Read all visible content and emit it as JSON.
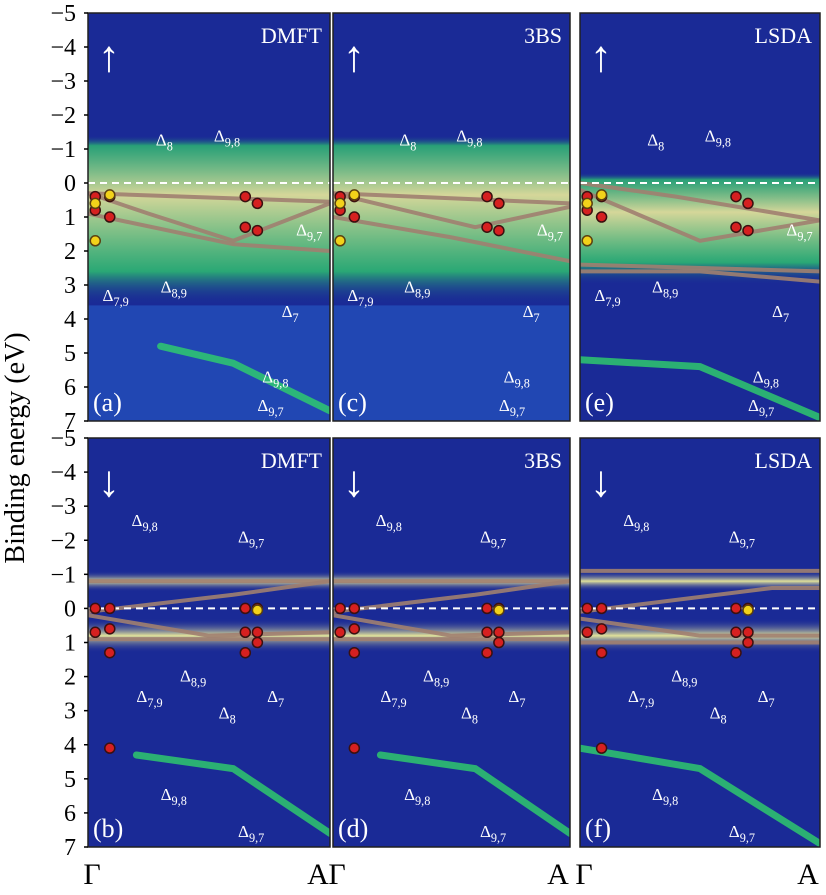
{
  "figure": {
    "ylabel": "Binding energy (eV)",
    "ytick_labels": [
      "−5",
      "−4",
      "−3",
      "−2",
      "−1",
      "0",
      "1",
      "2",
      "3",
      "4",
      "5",
      "6",
      "7"
    ],
    "k_labels": {
      "left": "Γ",
      "right": "A"
    }
  },
  "colors": {
    "background": "#1a2a96",
    "green": "#2fd26a",
    "yellow": "#f6f59a",
    "band_line": "#a08070",
    "marker_red": "#d62020",
    "marker_yellow": "#f2d21a",
    "label_white": "#ffffff"
  },
  "chart_data": [
    {
      "type": "heatmap",
      "panel": "(a)",
      "method": "DMFT",
      "spin": "up",
      "spin_symbol": "↑",
      "ylim": [
        -5,
        7
      ],
      "x_range": [
        "Γ",
        "A"
      ],
      "bands": [
        {
          "name": "Δ9,8",
          "x": [
            0,
            1
          ],
          "y": [
            0.3,
            0.55
          ]
        },
        {
          "name": "Δ8",
          "x": [
            0,
            0.25,
            0.6,
            1
          ],
          "y": [
            0.3,
            0.9,
            1.7,
            0.6
          ]
        },
        {
          "name": "Δ8,9",
          "x": [
            0,
            0.6,
            1
          ],
          "y": [
            0.9,
            1.8,
            2.0
          ]
        },
        {
          "name": "Δ9,8",
          "x": [
            0.3,
            0.6,
            1
          ],
          "y": [
            4.8,
            5.3,
            6.7
          ]
        }
      ],
      "annotations": [
        "Δ8",
        "Δ9,8",
        "Δ9,7",
        "Δ7,9",
        "Δ8,9",
        "Δ7",
        "Δ9,8",
        "Δ9,7"
      ],
      "experiment_red": {
        "x": [
          0.03,
          0.09,
          0.03,
          0.09,
          0.65,
          0.7,
          0.65,
          0.7
        ],
        "y": [
          0.4,
          0.4,
          0.8,
          1.0,
          0.4,
          0.6,
          1.3,
          1.4
        ]
      },
      "experiment_yellow": {
        "x": [
          0.03,
          0.03,
          0.09
        ],
        "y": [
          0.6,
          1.7,
          0.35
        ]
      }
    },
    {
      "type": "heatmap",
      "panel": "(c)",
      "method": "3BS",
      "spin": "up",
      "spin_symbol": "↑",
      "ylim": [
        -5,
        7
      ],
      "x_range": [
        "Γ",
        "A"
      ],
      "bands": [
        {
          "name": "Δ9,8",
          "x": [
            0,
            1
          ],
          "y": [
            0.3,
            0.6
          ]
        },
        {
          "name": "Δ8",
          "x": [
            0,
            0.3,
            0.6,
            1
          ],
          "y": [
            0.3,
            0.8,
            1.3,
            0.7
          ]
        },
        {
          "name": "Δ8,9",
          "x": [
            0,
            0.5,
            1
          ],
          "y": [
            1.0,
            1.6,
            2.3
          ]
        }
      ],
      "annotations": [
        "Δ8",
        "Δ9,8",
        "Δ9,7",
        "Δ7,9",
        "Δ8,9",
        "Δ7",
        "Δ9,8",
        "Δ9,7"
      ],
      "experiment_red": {
        "x": [
          0.03,
          0.09,
          0.03,
          0.09,
          0.65,
          0.7,
          0.65,
          0.7
        ],
        "y": [
          0.4,
          0.4,
          0.8,
          1.0,
          0.4,
          0.6,
          1.3,
          1.4
        ]
      },
      "experiment_yellow": {
        "x": [
          0.03,
          0.03,
          0.09
        ],
        "y": [
          0.6,
          1.7,
          0.35
        ]
      }
    },
    {
      "type": "heatmap",
      "panel": "(e)",
      "method": "LSDA",
      "spin": "up",
      "spin_symbol": "↑",
      "ylim": [
        -5,
        7
      ],
      "x_range": [
        "Γ",
        "A"
      ],
      "bands": [
        {
          "name": "Δ9,8",
          "x": [
            0,
            0.4,
            1
          ],
          "y": [
            0.0,
            0.4,
            1.1
          ]
        },
        {
          "name": "Δ8",
          "x": [
            0,
            0.5,
            1
          ],
          "y": [
            0.2,
            1.7,
            1.1
          ]
        },
        {
          "name": "Δ8,9",
          "x": [
            0,
            0.5,
            1
          ],
          "y": [
            2.6,
            2.6,
            2.9
          ]
        },
        {
          "name": "Δ7",
          "x": [
            0,
            1
          ],
          "y": [
            2.4,
            2.6
          ]
        },
        {
          "name": "Δ9,8",
          "x": [
            0,
            0.5,
            1
          ],
          "y": [
            5.2,
            5.4,
            6.9
          ]
        }
      ],
      "annotations": [
        "Δ8",
        "Δ9,8",
        "Δ9,7",
        "Δ7,9",
        "Δ8,9",
        "Δ7",
        "Δ9,8",
        "Δ9,7"
      ],
      "experiment_red": {
        "x": [
          0.03,
          0.09,
          0.03,
          0.09,
          0.65,
          0.7,
          0.65,
          0.7
        ],
        "y": [
          0.4,
          0.4,
          0.8,
          1.0,
          0.4,
          0.6,
          1.3,
          1.4
        ]
      },
      "experiment_yellow": {
        "x": [
          0.03,
          0.03,
          0.09
        ],
        "y": [
          0.6,
          1.7,
          0.35
        ]
      }
    },
    {
      "type": "heatmap",
      "panel": "(b)",
      "method": "DMFT",
      "spin": "down",
      "spin_symbol": "↓",
      "ylim": [
        -5,
        7
      ],
      "x_range": [
        "Γ",
        "A"
      ],
      "bands": [
        {
          "name": "Δ9,8",
          "x": [
            0,
            1
          ],
          "y": [
            -0.8,
            -0.8
          ]
        },
        {
          "name": "Δ9,7",
          "x": [
            0,
            0.6,
            1
          ],
          "y": [
            0.1,
            -0.4,
            -0.8
          ]
        },
        {
          "name": "Δ8,9",
          "x": [
            0,
            0.5,
            1
          ],
          "y": [
            0.2,
            0.8,
            0.7
          ]
        },
        {
          "name": "Δ7,9",
          "x": [
            0,
            1
          ],
          "y": [
            0.9,
            0.9
          ]
        },
        {
          "name": "Δ9,8",
          "x": [
            0.2,
            0.6,
            1
          ],
          "y": [
            4.3,
            4.7,
            6.6
          ]
        }
      ],
      "annotations": [
        "Δ9,8",
        "Δ9,7",
        "Δ7,9",
        "Δ8,9",
        "Δ8",
        "Δ7",
        "Δ9,8",
        "Δ9,7"
      ],
      "experiment_red": {
        "x": [
          0.03,
          0.09,
          0.03,
          0.09,
          0.09,
          0.65,
          0.7,
          0.65,
          0.7,
          0.65,
          0.7,
          0.09
        ],
        "y": [
          0.0,
          0.0,
          0.7,
          0.6,
          1.3,
          0.0,
          0.0,
          0.7,
          0.7,
          1.3,
          1.0,
          4.1
        ]
      },
      "experiment_yellow": {
        "x": [
          0.7
        ],
        "y": [
          0.05
        ]
      }
    },
    {
      "type": "heatmap",
      "panel": "(d)",
      "method": "3BS",
      "spin": "down",
      "spin_symbol": "↓",
      "ylim": [
        -5,
        7
      ],
      "x_range": [
        "Γ",
        "A"
      ],
      "bands": [
        {
          "name": "Δ9,8",
          "x": [
            0,
            1
          ],
          "y": [
            -0.8,
            -0.8
          ]
        },
        {
          "name": "Δ9,7",
          "x": [
            0,
            0.6,
            1
          ],
          "y": [
            0.1,
            -0.4,
            -0.8
          ]
        },
        {
          "name": "Δ8,9",
          "x": [
            0,
            0.5,
            1
          ],
          "y": [
            0.2,
            0.8,
            0.7
          ]
        },
        {
          "name": "Δ7,9",
          "x": [
            0,
            1
          ],
          "y": [
            0.9,
            0.9
          ]
        },
        {
          "name": "Δ9,8",
          "x": [
            0.2,
            0.6,
            1
          ],
          "y": [
            4.3,
            4.7,
            6.6
          ]
        }
      ],
      "annotations": [
        "Δ9,8",
        "Δ9,7",
        "Δ7,9",
        "Δ8,9",
        "Δ8",
        "Δ7",
        "Δ9,8",
        "Δ9,7"
      ],
      "experiment_red": {
        "x": [
          0.03,
          0.09,
          0.03,
          0.09,
          0.09,
          0.65,
          0.7,
          0.65,
          0.7,
          0.65,
          0.7,
          0.09
        ],
        "y": [
          0.0,
          0.0,
          0.7,
          0.6,
          1.3,
          0.0,
          0.0,
          0.7,
          0.7,
          1.3,
          1.0,
          4.1
        ]
      },
      "experiment_yellow": {
        "x": [
          0.7
        ],
        "y": [
          0.05
        ]
      }
    },
    {
      "type": "heatmap",
      "panel": "(f)",
      "method": "LSDA",
      "spin": "down",
      "spin_symbol": "↓",
      "ylim": [
        -5,
        7
      ],
      "x_range": [
        "Γ",
        "A"
      ],
      "bands": [
        {
          "name": "Δ9,8",
          "x": [
            0,
            1
          ],
          "y": [
            -1.1,
            -1.1
          ]
        },
        {
          "name": "Δ9,7",
          "x": [
            0,
            0.8,
            1
          ],
          "y": [
            0.1,
            -0.6,
            -0.6
          ]
        },
        {
          "name": "Δ8,9",
          "x": [
            0,
            0.5,
            1
          ],
          "y": [
            0.3,
            0.8,
            0.8
          ]
        },
        {
          "name": "Δ7,9",
          "x": [
            0,
            1
          ],
          "y": [
            1.0,
            1.0
          ]
        },
        {
          "name": "Δ9,8",
          "x": [
            0,
            0.5,
            1
          ],
          "y": [
            4.1,
            4.7,
            6.9
          ]
        }
      ],
      "annotations": [
        "Δ9,8",
        "Δ9,7",
        "Δ7,9",
        "Δ8,9",
        "Δ8",
        "Δ7",
        "Δ9,8",
        "Δ9,7"
      ],
      "experiment_red": {
        "x": [
          0.03,
          0.09,
          0.03,
          0.09,
          0.09,
          0.65,
          0.7,
          0.65,
          0.7,
          0.65,
          0.7,
          0.09
        ],
        "y": [
          0.0,
          0.0,
          0.7,
          0.6,
          1.3,
          0.0,
          0.0,
          0.7,
          0.7,
          1.3,
          1.0,
          4.1
        ]
      },
      "experiment_yellow": {
        "x": [
          0.7
        ],
        "y": [
          0.05
        ]
      }
    }
  ]
}
